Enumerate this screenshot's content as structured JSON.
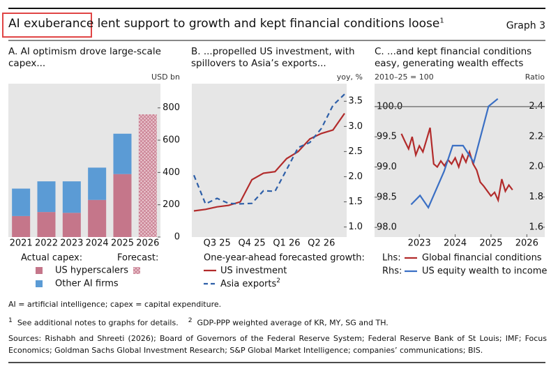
{
  "header": {
    "title": "AI exuberance lent support to growth and kept financial conditions loose",
    "title_note": "1",
    "graph_label": "Graph 3"
  },
  "chart_data": [
    {
      "type": "bar",
      "panel_title": "A. AI optimism drove large-scale capex...",
      "y_unit": "USD bn",
      "categories": [
        "2021",
        "2022",
        "2023",
        "2024",
        "2025",
        "2026"
      ],
      "legend_title": "Actual capex:",
      "series": [
        {
          "name": "US hyperscalers",
          "color": "#c5768a",
          "values": [
            130,
            155,
            150,
            230,
            390,
            null
          ]
        },
        {
          "name": "Other AI firms",
          "color": "#5b9bd5",
          "values": [
            170,
            190,
            195,
            200,
            250,
            null
          ]
        },
        {
          "name": "Forecast:",
          "color": "#d8a0ad",
          "pattern": "crosshatch",
          "values": [
            null,
            null,
            null,
            null,
            null,
            760
          ]
        }
      ],
      "ylim": [
        0,
        950
      ],
      "yticks": [
        0,
        200,
        400,
        600,
        800
      ],
      "grid": false
    },
    {
      "type": "line",
      "panel_title": "B. ...propelled US investment, with spillovers to Asia’s exports...",
      "y_unit": "yoy, %",
      "categories": [
        null,
        null,
        "Q3 25",
        null,
        null,
        "Q4 25",
        null,
        null,
        "Q1 26",
        null,
        null,
        "Q2 26",
        null,
        null
      ],
      "legend_title": "One-year-ahead forecasted growth:",
      "series": [
        {
          "name": "US investment",
          "color": "#b22b2b",
          "dash": false,
          "values": [
            1.32,
            1.35,
            1.4,
            1.43,
            1.5,
            1.94,
            2.07,
            2.1,
            2.36,
            2.5,
            2.75,
            2.86,
            2.93,
            3.26
          ]
        },
        {
          "name": "Asia exports",
          "name_note": "2",
          "color": "#2e5fa8",
          "dash": true,
          "values": [
            2.03,
            1.46,
            1.57,
            1.47,
            1.46,
            1.47,
            1.72,
            1.71,
            2.14,
            2.58,
            2.68,
            2.96,
            3.42,
            3.64
          ]
        }
      ],
      "ylim": [
        0.8,
        3.85
      ],
      "yticks": [
        {
          "value": 1,
          "label": "1.0"
        },
        1.5,
        {
          "value": 2,
          "label": "2.0"
        },
        2.5,
        {
          "value": 3,
          "label": "3.0"
        },
        3.5
      ],
      "grid": false
    },
    {
      "type": "line",
      "panel_title": "C. ...and kept financial conditions easy, generating wealth effects",
      "y_unit": "2010–25 = 100",
      "y2_unit": "Ratio",
      "xlim": [
        2022.25,
        2027.0
      ],
      "xticks": [
        {
          "value": 2023.5,
          "label": "2023"
        },
        {
          "value": 2024.5,
          "label": "2024"
        },
        {
          "value": 2025.5,
          "label": "2025"
        },
        {
          "value": 2026.5,
          "label": "2026"
        }
      ],
      "hline": 100,
      "series": [
        {
          "name": "Global financial conditions",
          "legend_prefix": "Lhs:",
          "color": "#b22b2b",
          "dash": false,
          "x": [
            2023.0,
            2023.1,
            2023.2,
            2023.3,
            2023.4,
            2023.5,
            2023.6,
            2023.7,
            2023.8,
            2023.9,
            2024.0,
            2024.1,
            2024.2,
            2024.3,
            2024.4,
            2024.5,
            2024.6,
            2024.7,
            2024.8,
            2024.9,
            2025.0,
            2025.1,
            2025.2,
            2025.3,
            2025.4,
            2025.5,
            2025.6,
            2025.7,
            2025.8,
            2025.9,
            2026.0,
            2026.1
          ],
          "values": [
            99.55,
            99.42,
            99.3,
            99.5,
            99.2,
            99.35,
            99.25,
            99.45,
            99.65,
            99.05,
            99.0,
            99.1,
            99.02,
            99.12,
            99.05,
            99.15,
            99.0,
            99.2,
            99.08,
            99.25,
            99.05,
            98.95,
            98.75,
            98.68,
            98.6,
            98.52,
            98.58,
            98.45,
            98.8,
            98.6,
            98.7,
            98.62
          ]
        },
        {
          "name": "US equity wealth to income",
          "legend_prefix": "Rhs:",
          "color": "#3a6fc4",
          "dash": false,
          "axis": "y2",
          "x": [
            2023.27,
            2023.52,
            2023.75,
            2024.19,
            2024.43,
            2024.72,
            2025.02,
            2025.43,
            2025.69
          ],
          "values": [
            1.75,
            1.81,
            1.73,
            1.97,
            2.14,
            2.14,
            2.03,
            2.4,
            2.45
          ]
        }
      ],
      "ylim": [
        97.84,
        100.38
      ],
      "yticks": [
        {
          "value": 98,
          "label": "98.0"
        },
        98.5,
        {
          "value": 99,
          "label": "99.0"
        },
        99.5,
        {
          "value": 100,
          "label": "100.0"
        }
      ],
      "y2lim": [
        1.535,
        2.55
      ],
      "y2ticks": [
        1.6,
        1.8,
        {
          "value": 2,
          "label": "2.0"
        },
        2.2,
        2.4
      ],
      "grid": false
    }
  ],
  "notes": {
    "abbreviations": "AI = artificial intelligence; capex = capital expenditure.",
    "footnotes": [
      {
        "mark": "1",
        "text": "See additional notes to graphs for details."
      },
      {
        "mark": "2",
        "text": "GDP-PPP weighted average of KR, MY, SG and TH."
      }
    ],
    "sources": "Sources: Rishabh and Shreeti (2026); Board of Governors of the Federal Reserve System; Federal Reserve Bank of St Louis; IMF; Focus Economics; Goldman Sachs Global Investment Research; S&P Global Market Intelligence; companies’ communications; BIS."
  }
}
